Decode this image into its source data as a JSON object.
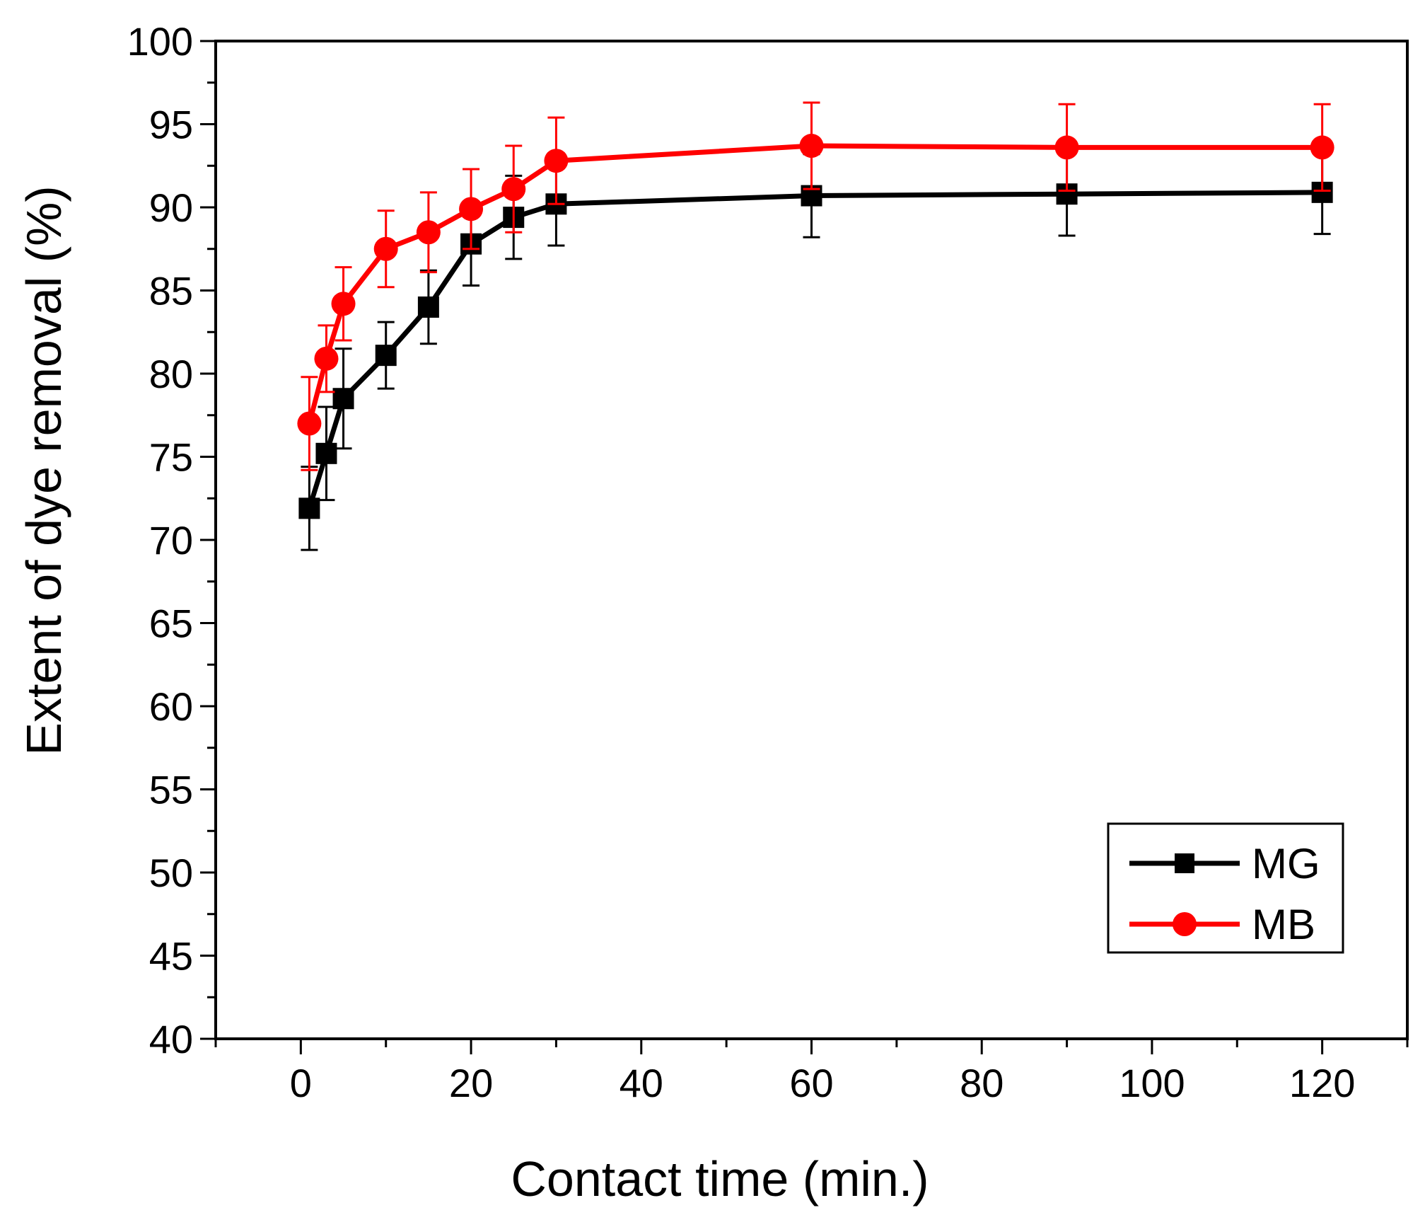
{
  "chart_data": {
    "type": "line",
    "xlabel": "Contact time (min.)",
    "ylabel": "Extent of dye removal (%)",
    "xlim": [
      -10,
      130
    ],
    "ylim": [
      40,
      100
    ],
    "x_ticks": [
      0,
      20,
      40,
      60,
      80,
      100,
      120
    ],
    "x_tick_labels": [
      "0",
      "20",
      "40",
      "60",
      "80",
      "100",
      "120"
    ],
    "y_ticks": [
      40,
      45,
      50,
      55,
      60,
      65,
      70,
      75,
      80,
      85,
      90,
      95,
      100
    ],
    "y_tick_labels": [
      "40",
      "45",
      "50",
      "55",
      "60",
      "65",
      "70",
      "75",
      "80",
      "85",
      "90",
      "95",
      "100"
    ],
    "legend_position": "bottom-right",
    "series": [
      {
        "name": "MG",
        "color": "#000000",
        "marker": "square",
        "x": [
          1,
          3,
          5,
          10,
          15,
          20,
          25,
          30,
          60,
          90,
          120
        ],
        "y": [
          71.9,
          75.2,
          78.5,
          81.1,
          84.0,
          87.8,
          89.4,
          90.2,
          90.7,
          90.8,
          90.9
        ],
        "error": [
          2.5,
          2.8,
          3.0,
          2.0,
          2.2,
          2.5,
          2.5,
          2.5,
          2.5,
          2.5,
          2.5
        ]
      },
      {
        "name": "MB",
        "color": "#ff0000",
        "marker": "circle",
        "x": [
          1,
          3,
          5,
          10,
          15,
          20,
          25,
          30,
          60,
          90,
          120
        ],
        "y": [
          77.0,
          80.9,
          84.2,
          87.5,
          88.5,
          89.9,
          91.1,
          92.8,
          93.7,
          93.6,
          93.6
        ],
        "error": [
          2.8,
          2.0,
          2.2,
          2.3,
          2.4,
          2.4,
          2.6,
          2.6,
          2.6,
          2.6,
          2.6
        ]
      }
    ]
  }
}
